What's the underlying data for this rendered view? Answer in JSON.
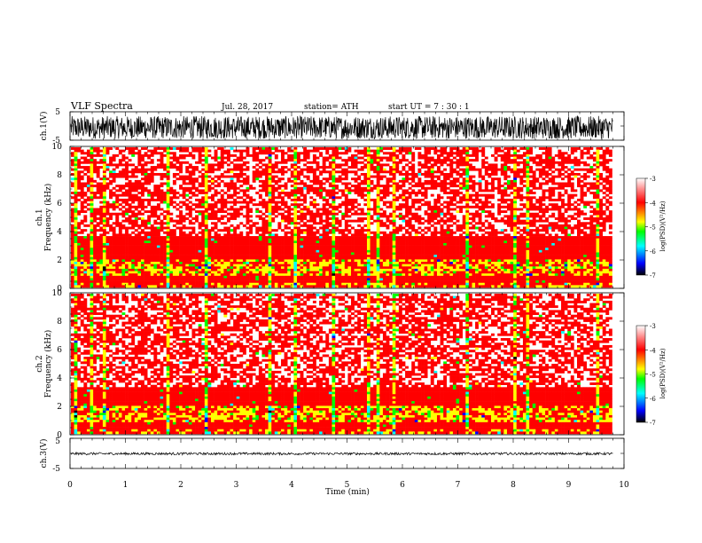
{
  "header": {
    "title": "VLF  Spectra",
    "date": "Jul.  28, 2017",
    "station": "station= ATH",
    "start_ut": "start  UT  =   7  : 30 : 1"
  },
  "chart_data": [
    {
      "id": "ch1-waveform",
      "type": "line",
      "ylabel": "ch.1(V)",
      "y_ticks": [
        "5",
        "-5"
      ],
      "ylim": [
        -5,
        5
      ],
      "xlim": [
        0,
        10
      ],
      "data_end_min": 9.8,
      "amplitude_range": [
        -4.5,
        3.5
      ],
      "color": "#000000"
    },
    {
      "id": "ch1-spectrogram",
      "type": "heatmap",
      "ylabel": "ch.1",
      "ylabel2": "Frequency  (kHz)",
      "y_ticks": [
        "0",
        "2",
        "4",
        "6",
        "8",
        "10"
      ],
      "ylim": [
        0,
        10
      ],
      "xlim": [
        0,
        10
      ],
      "data_end_min": 9.8,
      "colorbar": {
        "label": "log(PSD)(V²/Hz)",
        "ticks": [
          "-3",
          "-4",
          "-5",
          "-6",
          "-7"
        ],
        "range": [
          -7,
          -3
        ],
        "colors": [
          "#000000",
          "#0000ff",
          "#00ffff",
          "#00ff00",
          "#ffff00",
          "#ff0000",
          "#ffffff"
        ]
      },
      "intense_band_khz": [
        0,
        3.6
      ],
      "green_band_khz": [
        0.8,
        2.0
      ],
      "burst_times_min": [
        0.07,
        0.35,
        0.62,
        1.75,
        2.45,
        3.6,
        3.63,
        4.05,
        4.75,
        5.4,
        5.55,
        5.85,
        7.2,
        8.05,
        8.25,
        9.55
      ]
    },
    {
      "id": "ch2-spectrogram",
      "type": "heatmap",
      "ylabel": "ch.2",
      "ylabel2": "Frequency  (kHz)",
      "y_ticks": [
        "0",
        "2",
        "4",
        "6",
        "8",
        "10"
      ],
      "ylim": [
        0,
        10
      ],
      "xlim": [
        0,
        10
      ],
      "data_end_min": 9.8,
      "colorbar": {
        "label": "log(PSD)(V²/Hz)",
        "ticks": [
          "-3",
          "-4",
          "-5",
          "-6",
          "-7"
        ],
        "range": [
          -7,
          -3
        ],
        "colors": [
          "#000000",
          "#0000ff",
          "#00ffff",
          "#00ff00",
          "#ffff00",
          "#ff0000",
          "#ffffff"
        ]
      },
      "intense_band_khz": [
        0,
        3.4
      ],
      "green_band_khz": [
        0.8,
        2.0
      ],
      "burst_times_min": [
        0.07,
        0.35,
        0.62,
        1.75,
        2.45,
        3.6,
        3.63,
        4.05,
        4.75,
        5.4,
        5.55,
        5.85,
        7.2,
        8.05,
        8.25,
        9.55
      ]
    },
    {
      "id": "ch3-waveform",
      "type": "line",
      "ylabel": "ch.3(V)",
      "y_ticks": [
        "5",
        "-5"
      ],
      "ylim": [
        -5,
        5
      ],
      "xlim": [
        0,
        10
      ],
      "data_end_min": 9.8,
      "amplitude_range": [
        -0.5,
        0.3
      ],
      "color": "#000000"
    }
  ],
  "x_axis": {
    "label": "Time  (min)",
    "ticks": [
      "0",
      "1",
      "2",
      "3",
      "4",
      "5",
      "6",
      "7",
      "8",
      "9",
      "10"
    ]
  }
}
